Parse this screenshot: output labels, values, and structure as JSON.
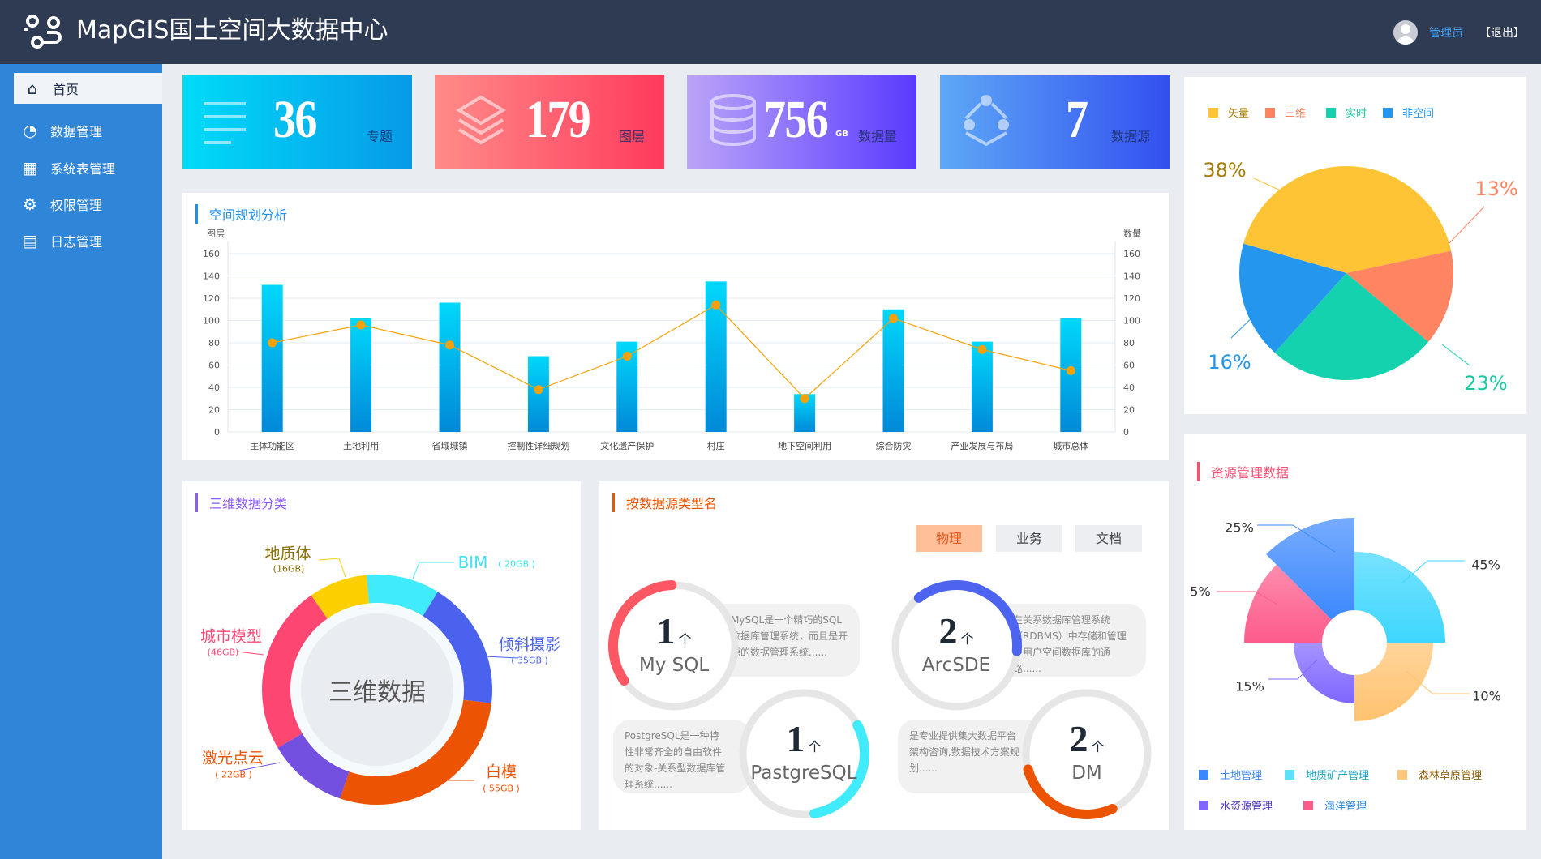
{
  "header": {
    "title": "MapGIS国土空间大数据中心",
    "user": "管理员",
    "logout": "【退出】"
  },
  "sidebar": {
    "items": [
      {
        "label": "首页",
        "icon": "home-icon"
      },
      {
        "label": "数据管理",
        "icon": "chart-icon"
      },
      {
        "label": "系统表管理",
        "icon": "table-icon"
      },
      {
        "label": "权限管理",
        "icon": "gear-icon"
      },
      {
        "label": "日志管理",
        "icon": "calendar-icon"
      }
    ]
  },
  "stats": [
    {
      "value": "36",
      "label": "专题",
      "unit": ""
    },
    {
      "value": "179",
      "label": "图层",
      "unit": ""
    },
    {
      "value": "756",
      "label": "数据量",
      "unit": "GB"
    },
    {
      "value": "7",
      "label": "数据源",
      "unit": ""
    }
  ],
  "colors": {
    "header": "#2f3a53",
    "sidebar": "#2f86d9",
    "bar": "#00a6e6",
    "line": "#f5a20a"
  },
  "chart_data": [
    {
      "type": "bar",
      "title": "空间规划分析",
      "ylabel": "图层",
      "y2label": "数量",
      "ylim": [
        0,
        160
      ],
      "yticks": [
        0,
        20,
        40,
        60,
        80,
        100,
        120,
        140,
        160
      ],
      "categories": [
        "主体功能区",
        "土地利用",
        "省域城镇",
        "控制性详细规划",
        "文化遗产保护",
        "村庄",
        "地下空间利用",
        "综合防灾",
        "产业发展与布局",
        "城市总体"
      ],
      "series": [
        {
          "name": "图层",
          "type": "bar",
          "values": [
            132,
            102,
            116,
            68,
            81,
            135,
            34,
            110,
            81,
            102
          ]
        },
        {
          "name": "数量",
          "type": "line",
          "values": [
            80,
            96,
            78,
            38,
            68,
            114,
            30,
            102,
            74,
            55
          ]
        }
      ]
    },
    {
      "type": "pie",
      "legend": [
        "矢量",
        "三维",
        "实时",
        "非空间"
      ],
      "values": [
        38,
        13,
        23,
        16
      ],
      "labels": [
        "38%",
        "13%",
        "23%",
        "16%"
      ],
      "colors": [
        "#ffc435",
        "#ff8462",
        "#15d2ae",
        "#2496ee"
      ],
      "label_colors": [
        "#a87c00",
        "#ff8462",
        "#15c8a2",
        "#2496ee"
      ]
    },
    {
      "type": "pie",
      "title": "三维数据分类",
      "center": "三维数据",
      "categories": [
        "地质体",
        "BIM",
        "倾斜摄影",
        "白模",
        "激光点云",
        "城市模型"
      ],
      "values": [
        16,
        20,
        35,
        55,
        22,
        46
      ],
      "value_labels": [
        "(16GB)",
        "( 20GB )",
        "( 35GB )",
        "( 55GB )",
        "( 22GB )",
        "(46GB)"
      ],
      "colors": [
        "#fccf00",
        "#40ebfb",
        "#4b62ef",
        "#ec5404",
        "#7350e0",
        "#fe4673"
      ],
      "label_colors": [
        "#8a6d00",
        "#40e0f5",
        "#4b62ef",
        "#ec5404",
        "#ec5404",
        "#fe4673"
      ]
    },
    {
      "type": "pie",
      "title": "资源管理数据",
      "rose": true,
      "categories": [
        "地质矿产管理",
        "森林草原管理",
        "水资源管理",
        "海洋管理",
        "土地管理"
      ],
      "values": [
        45,
        10,
        15,
        5,
        25
      ],
      "labels": [
        "45%",
        "10%",
        "15%",
        "5%",
        "25%"
      ],
      "colors": [
        "#3dd6fd",
        "#ffc26f",
        "#7f66ff",
        "#fd5b8b",
        "#3c88fd"
      ]
    }
  ],
  "sources": {
    "title": "按数据源类型名",
    "tabs": [
      "物理",
      "业务",
      "文档"
    ],
    "items": [
      {
        "count": "1",
        "unit": "个",
        "name": "My SQL",
        "desc": "MySQL是一个精巧的SQL数据库管理系统，而且是开源的数据管理系统......",
        "color": "#fe5764"
      },
      {
        "count": "2",
        "unit": "个",
        "name": "ArcSDE",
        "desc": "在关系数据库管理系统（RDBMS）中存储和管理多用户空间数据库的通路......",
        "color": "#4c64ef"
      },
      {
        "count": "1",
        "unit": "个",
        "name": "PastgreSQL",
        "desc": "PostgreSQL是一种特性非常齐全的自由软件的对象-关系型数据库管理系统......",
        "color": "#40ebfb"
      },
      {
        "count": "2",
        "unit": "个",
        "name": "DM",
        "desc": "是专业提供集大数据平台架构咨询,数据技术方案规划......",
        "color": "#ec5404"
      }
    ]
  },
  "resource_legend": [
    "土地管理",
    "地质矿产管理",
    "森林草原管理",
    "水资源管理",
    "海洋管理"
  ]
}
